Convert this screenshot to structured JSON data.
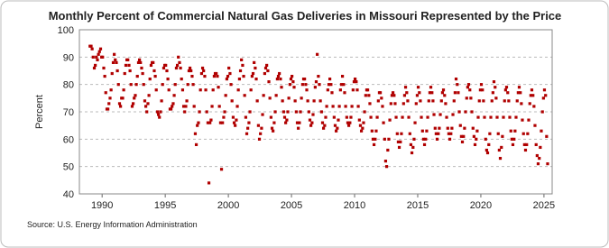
{
  "chart_data": {
    "type": "scatter",
    "title": "Monthly Percent of Commercial Natural Gas Deliveries in Missouri Represented by the Price",
    "y_label": "Percent",
    "source": "Source: U.S. Energy Information Administration",
    "xlim": [
      1988.2,
      2025.65
    ],
    "ylim": [
      40,
      100
    ],
    "xticks": [
      1990,
      1995,
      2000,
      2005,
      2010,
      2015,
      2020,
      2025
    ],
    "yticks": [
      40,
      50,
      60,
      70,
      80,
      90,
      100
    ],
    "grid": true,
    "series": [
      {
        "color": "#b00000",
        "x": [
          1989.04,
          1989.13,
          1989.21,
          1989.29,
          1989.38,
          1989.46,
          1989.54,
          1989.63,
          1989.71,
          1989.79,
          1989.88,
          1989.96,
          1990.04,
          1990.13,
          1990.21,
          1990.29,
          1990.38,
          1990.46,
          1990.54,
          1990.63,
          1990.71,
          1990.79,
          1990.88,
          1990.96,
          1991.04,
          1991.13,
          1991.21,
          1991.29,
          1991.38,
          1991.46,
          1991.54,
          1991.63,
          1991.71,
          1991.79,
          1991.88,
          1991.96,
          1992.04,
          1992.13,
          1992.21,
          1992.29,
          1992.38,
          1992.46,
          1992.54,
          1992.63,
          1992.71,
          1992.79,
          1992.88,
          1992.96,
          1993.04,
          1993.13,
          1993.21,
          1993.29,
          1993.38,
          1993.46,
          1993.54,
          1993.63,
          1993.71,
          1993.79,
          1993.88,
          1993.96,
          1994.04,
          1994.13,
          1994.21,
          1994.29,
          1994.38,
          1994.46,
          1994.54,
          1994.63,
          1994.71,
          1994.79,
          1994.88,
          1994.96,
          1995.04,
          1995.13,
          1995.21,
          1995.29,
          1995.38,
          1995.46,
          1995.54,
          1995.63,
          1995.71,
          1995.79,
          1995.88,
          1995.96,
          1996.04,
          1996.13,
          1996.21,
          1996.29,
          1996.38,
          1996.46,
          1996.54,
          1996.63,
          1996.71,
          1996.79,
          1996.88,
          1996.96,
          1997.04,
          1997.13,
          1997.21,
          1997.29,
          1997.38,
          1997.46,
          1997.54,
          1997.63,
          1997.71,
          1997.79,
          1997.88,
          1997.96,
          1998.04,
          1998.13,
          1998.21,
          1998.29,
          1998.38,
          1998.46,
          1998.54,
          1998.63,
          1998.71,
          1998.79,
          1998.88,
          1998.96,
          1999.04,
          1999.13,
          1999.21,
          1999.29,
          1999.38,
          1999.46,
          1999.54,
          1999.63,
          1999.71,
          1999.79,
          1999.88,
          1999.96,
          2000.04,
          2000.13,
          2000.21,
          2000.29,
          2000.38,
          2000.46,
          2000.54,
          2000.63,
          2000.71,
          2000.79,
          2000.88,
          2000.96,
          2001.04,
          2001.13,
          2001.21,
          2001.29,
          2001.38,
          2001.46,
          2001.54,
          2001.63,
          2001.71,
          2001.79,
          2001.88,
          2001.96,
          2002.04,
          2002.13,
          2002.21,
          2002.29,
          2002.38,
          2002.46,
          2002.54,
          2002.63,
          2002.71,
          2002.79,
          2002.88,
          2002.96,
          2003.04,
          2003.13,
          2003.21,
          2003.29,
          2003.38,
          2003.46,
          2003.54,
          2003.63,
          2003.71,
          2003.79,
          2003.88,
          2003.96,
          2004.04,
          2004.13,
          2004.21,
          2004.29,
          2004.38,
          2004.46,
          2004.54,
          2004.63,
          2004.71,
          2004.79,
          2004.88,
          2004.96,
          2005.04,
          2005.13,
          2005.21,
          2005.29,
          2005.38,
          2005.46,
          2005.54,
          2005.63,
          2005.71,
          2005.79,
          2005.88,
          2005.96,
          2006.04,
          2006.13,
          2006.21,
          2006.29,
          2006.38,
          2006.46,
          2006.54,
          2006.63,
          2006.71,
          2006.79,
          2006.88,
          2006.96,
          2007.04,
          2007.13,
          2007.21,
          2007.29,
          2007.38,
          2007.46,
          2007.54,
          2007.63,
          2007.71,
          2007.79,
          2007.88,
          2007.96,
          2008.04,
          2008.13,
          2008.21,
          2008.29,
          2008.38,
          2008.46,
          2008.54,
          2008.63,
          2008.71,
          2008.79,
          2008.88,
          2008.96,
          2009.04,
          2009.13,
          2009.21,
          2009.29,
          2009.38,
          2009.46,
          2009.54,
          2009.63,
          2009.71,
          2009.79,
          2009.88,
          2009.96,
          2010.04,
          2010.13,
          2010.21,
          2010.29,
          2010.38,
          2010.46,
          2010.54,
          2010.63,
          2010.71,
          2010.79,
          2010.88,
          2010.96,
          2011.04,
          2011.13,
          2011.21,
          2011.29,
          2011.38,
          2011.46,
          2011.54,
          2011.63,
          2011.71,
          2011.79,
          2011.88,
          2011.96,
          2012.04,
          2012.13,
          2012.21,
          2012.29,
          2012.38,
          2012.46,
          2012.54,
          2012.63,
          2012.71,
          2012.79,
          2012.88,
          2012.96,
          2013.04,
          2013.13,
          2013.21,
          2013.29,
          2013.38,
          2013.46,
          2013.54,
          2013.63,
          2013.71,
          2013.79,
          2013.88,
          2013.96,
          2014.04,
          2014.13,
          2014.21,
          2014.29,
          2014.38,
          2014.46,
          2014.54,
          2014.63,
          2014.71,
          2014.79,
          2014.88,
          2014.96,
          2015.04,
          2015.13,
          2015.21,
          2015.29,
          2015.38,
          2015.46,
          2015.54,
          2015.63,
          2015.71,
          2015.79,
          2015.88,
          2015.96,
          2016.04,
          2016.13,
          2016.21,
          2016.29,
          2016.38,
          2016.46,
          2016.54,
          2016.63,
          2016.71,
          2016.79,
          2016.88,
          2016.96,
          2017.04,
          2017.13,
          2017.21,
          2017.29,
          2017.38,
          2017.46,
          2017.54,
          2017.63,
          2017.71,
          2017.79,
          2017.88,
          2017.96,
          2018.04,
          2018.13,
          2018.21,
          2018.29,
          2018.38,
          2018.46,
          2018.54,
          2018.63,
          2018.71,
          2018.79,
          2018.88,
          2018.96,
          2019.04,
          2019.13,
          2019.21,
          2019.29,
          2019.38,
          2019.46,
          2019.54,
          2019.63,
          2019.71,
          2019.79,
          2019.88,
          2019.96,
          2020.04,
          2020.13,
          2020.21,
          2020.29,
          2020.38,
          2020.46,
          2020.54,
          2020.63,
          2020.71,
          2020.79,
          2020.88,
          2020.96,
          2021.04,
          2021.13,
          2021.21,
          2021.29,
          2021.38,
          2021.46,
          2021.54,
          2021.63,
          2021.71,
          2021.79,
          2021.88,
          2021.96,
          2022.04,
          2022.13,
          2022.21,
          2022.29,
          2022.38,
          2022.46,
          2022.54,
          2022.63,
          2022.71,
          2022.79,
          2022.88,
          2022.96,
          2023.04,
          2023.13,
          2023.21,
          2023.29,
          2023.38,
          2023.46,
          2023.54,
          2023.63,
          2023.71,
          2023.79,
          2023.88,
          2023.96,
          2024.04,
          2024.13,
          2024.21,
          2024.29,
          2024.38,
          2024.46,
          2024.54,
          2024.63,
          2024.71,
          2024.79,
          2024.88,
          2024.96,
          2025.04,
          2025.13,
          2025.21,
          2025.29
        ],
        "values": [
          94,
          94,
          93,
          90,
          86,
          87,
          90,
          89,
          91,
          92,
          93,
          90,
          90,
          86,
          83,
          77,
          71,
          71,
          73,
          75,
          78,
          84,
          88,
          91,
          89,
          88,
          85,
          80,
          73,
          72,
          75,
          75,
          78,
          84,
          87,
          89,
          89,
          87,
          85,
          80,
          72,
          73,
          75,
          76,
          80,
          83,
          88,
          89,
          88,
          86,
          84,
          80,
          74,
          72,
          70,
          73,
          76,
          82,
          87,
          88,
          88,
          85,
          83,
          78,
          70,
          69,
          68,
          70,
          74,
          80,
          86,
          87,
          87,
          85,
          82,
          78,
          71,
          71,
          72,
          73,
          76,
          80,
          86,
          87,
          90,
          88,
          86,
          82,
          78,
          72,
          70,
          72,
          74,
          80,
          85,
          86,
          85,
          83,
          80,
          72,
          62,
          58,
          65,
          66,
          70,
          78,
          84,
          86,
          85,
          83,
          78,
          70,
          66,
          44,
          66,
          67,
          72,
          78,
          83,
          84,
          84,
          83,
          79,
          72,
          66,
          49,
          66,
          68,
          70,
          76,
          82,
          83,
          86,
          84,
          80,
          74,
          68,
          66,
          65,
          67,
          72,
          78,
          82,
          85,
          89,
          87,
          83,
          76,
          68,
          62,
          64,
          66,
          70,
          78,
          83,
          84,
          88,
          86,
          82,
          74,
          65,
          60,
          62,
          64,
          69,
          76,
          84,
          86,
          87,
          85,
          81,
          75,
          68,
          64,
          63,
          66,
          70,
          76,
          82,
          83,
          84,
          82,
          79,
          74,
          70,
          68,
          66,
          67,
          70,
          75,
          80,
          82,
          83,
          81,
          79,
          74,
          70,
          66,
          64,
          66,
          70,
          75,
          80,
          82,
          82,
          80,
          78,
          74,
          70,
          67,
          65,
          66,
          69,
          74,
          79,
          81,
          91,
          83,
          80,
          74,
          70,
          66,
          64,
          65,
          68,
          72,
          78,
          80,
          82,
          80,
          77,
          72,
          68,
          65,
          63,
          64,
          67,
          72,
          78,
          80,
          83,
          80,
          77,
          72,
          68,
          66,
          65,
          66,
          68,
          72,
          78,
          81,
          82,
          81,
          78,
          72,
          67,
          65,
          63,
          64,
          66,
          70,
          76,
          78,
          78,
          76,
          73,
          68,
          63,
          60,
          58,
          60,
          63,
          68,
          74,
          77,
          77,
          75,
          72,
          66,
          60,
          52,
          50,
          56,
          60,
          67,
          73,
          76,
          77,
          76,
          73,
          68,
          62,
          59,
          57,
          59,
          62,
          68,
          73,
          76,
          79,
          77,
          74,
          68,
          62,
          58,
          55,
          57,
          60,
          66,
          73,
          76,
          79,
          77,
          74,
          68,
          63,
          60,
          58,
          60,
          63,
          68,
          74,
          77,
          79,
          77,
          74,
          69,
          64,
          62,
          60,
          62,
          64,
          69,
          74,
          77,
          78,
          76,
          73,
          68,
          64,
          62,
          60,
          62,
          64,
          69,
          74,
          77,
          82,
          80,
          77,
          70,
          65,
          61,
          59,
          61,
          64,
          70,
          75,
          79,
          80,
          78,
          75,
          70,
          64,
          61,
          58,
          60,
          63,
          68,
          74,
          78,
          80,
          78,
          74,
          68,
          60,
          56,
          55,
          58,
          62,
          68,
          74,
          77,
          81,
          79,
          75,
          68,
          62,
          56,
          53,
          57,
          61,
          68,
          74,
          78,
          79,
          77,
          74,
          68,
          63,
          60,
          58,
          60,
          63,
          68,
          74,
          77,
          79,
          77,
          73,
          67,
          62,
          58,
          56,
          58,
          62,
          67,
          73,
          76,
          78,
          76,
          72,
          65,
          58,
          54,
          51,
          53,
          57,
          63,
          70,
          75,
          78,
          76,
          61,
          51
        ]
      }
    ]
  }
}
